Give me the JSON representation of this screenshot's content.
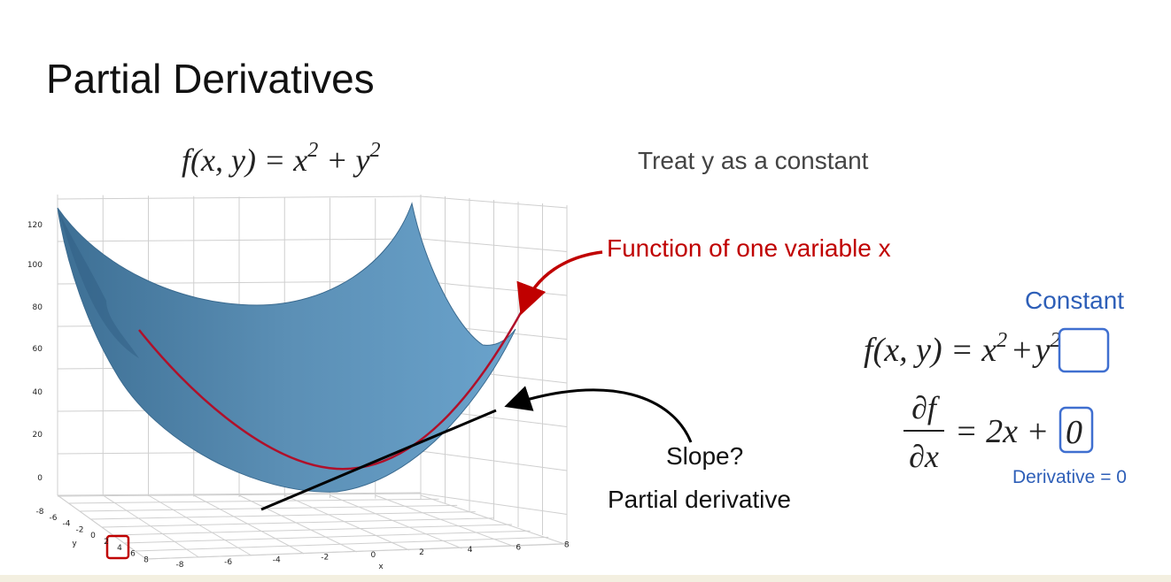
{
  "title": "Partial Derivatives",
  "formula_top": [
    {
      "t": "f(x, y) = x"
    },
    {
      "sup": "2"
    },
    {
      "t": " + y"
    },
    {
      "sup": "2"
    }
  ],
  "note": "Treat y as a constant",
  "curve_label": "Function of one variable x",
  "constant_label": "Constant",
  "formula_right": {
    "lhs": "f(x, y) = x",
    "exp1": "2",
    "plus": "+",
    "boxed_base": "y",
    "boxed_exp": "2"
  },
  "derivative": {
    "num": "∂f",
    "den": "∂x",
    "rhs": "= 2x +",
    "boxed": "0",
    "note": "Derivative = 0"
  },
  "slope_label": "Slope?",
  "partial_label": "Partial derivative",
  "plot": {
    "zticks": [
      120,
      100,
      80,
      60,
      40,
      20,
      0
    ],
    "xticks": [
      -8,
      -6,
      -4,
      -2,
      0,
      2,
      4,
      6,
      8
    ],
    "yticks": [
      -8,
      -6,
      -4,
      -2,
      0,
      2,
      4,
      6,
      8
    ],
    "xlabel": "x",
    "ylabel": "y"
  }
}
